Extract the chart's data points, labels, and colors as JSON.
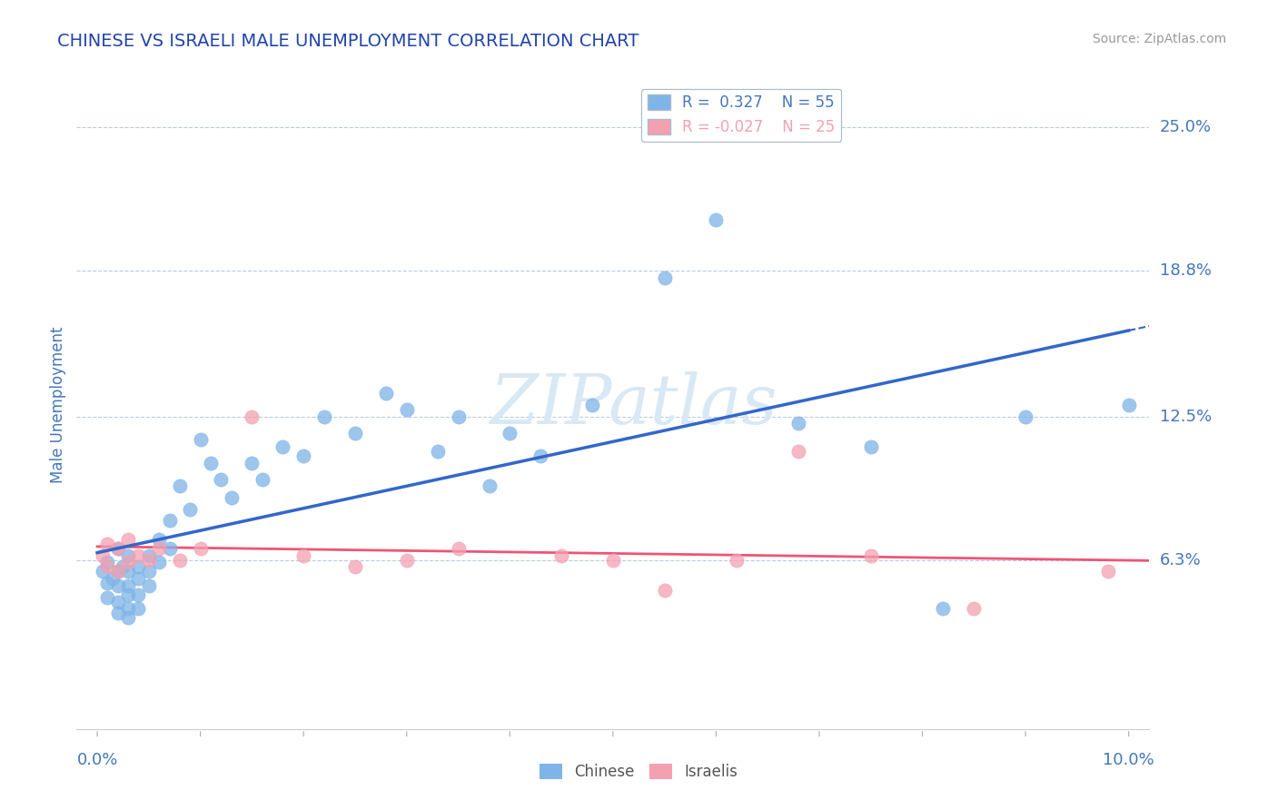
{
  "title": "CHINESE VS ISRAELI MALE UNEMPLOYMENT CORRELATION CHART",
  "source": "Source: ZipAtlas.com",
  "ylabel": "Male Unemployment",
  "ytick_labels": [
    "6.3%",
    "12.5%",
    "18.8%",
    "25.0%"
  ],
  "ytick_values": [
    0.063,
    0.125,
    0.188,
    0.25
  ],
  "xlim": [
    -0.002,
    0.102
  ],
  "ylim": [
    -0.01,
    0.27
  ],
  "chinese_R": 0.327,
  "chinese_N": 55,
  "israeli_R": -0.027,
  "israeli_N": 25,
  "chinese_color": "#7EB4E8",
  "israeli_color": "#F4A0B0",
  "trend_chinese_color": "#3366CC",
  "trend_israeli_color": "#EE5577",
  "title_color": "#2244AA",
  "label_color": "#4477BB",
  "axis_color": "#BBCCDD",
  "watermark_color": "#D8E8F4",
  "chinese_x": [
    0.0005,
    0.001,
    0.001,
    0.001,
    0.0015,
    0.002,
    0.002,
    0.002,
    0.002,
    0.002,
    0.0025,
    0.003,
    0.003,
    0.003,
    0.003,
    0.003,
    0.003,
    0.004,
    0.004,
    0.004,
    0.004,
    0.005,
    0.005,
    0.005,
    0.006,
    0.006,
    0.007,
    0.007,
    0.008,
    0.009,
    0.01,
    0.011,
    0.012,
    0.013,
    0.015,
    0.016,
    0.018,
    0.02,
    0.022,
    0.025,
    0.028,
    0.03,
    0.033,
    0.035,
    0.038,
    0.04,
    0.043,
    0.048,
    0.055,
    0.06,
    0.068,
    0.075,
    0.082,
    0.09,
    0.1
  ],
  "chinese_y": [
    0.058,
    0.062,
    0.053,
    0.047,
    0.055,
    0.068,
    0.058,
    0.052,
    0.045,
    0.04,
    0.06,
    0.065,
    0.058,
    0.052,
    0.048,
    0.042,
    0.038,
    0.06,
    0.055,
    0.048,
    0.042,
    0.065,
    0.058,
    0.052,
    0.072,
    0.062,
    0.08,
    0.068,
    0.095,
    0.085,
    0.115,
    0.105,
    0.098,
    0.09,
    0.105,
    0.098,
    0.112,
    0.108,
    0.125,
    0.118,
    0.135,
    0.128,
    0.11,
    0.125,
    0.095,
    0.118,
    0.108,
    0.13,
    0.185,
    0.21,
    0.122,
    0.112,
    0.042,
    0.125,
    0.13
  ],
  "israeli_x": [
    0.0005,
    0.001,
    0.001,
    0.002,
    0.002,
    0.003,
    0.003,
    0.004,
    0.005,
    0.006,
    0.008,
    0.01,
    0.015,
    0.02,
    0.025,
    0.03,
    0.035,
    0.045,
    0.05,
    0.055,
    0.062,
    0.068,
    0.075,
    0.085,
    0.098
  ],
  "israeli_y": [
    0.065,
    0.07,
    0.06,
    0.068,
    0.058,
    0.072,
    0.062,
    0.065,
    0.063,
    0.068,
    0.063,
    0.068,
    0.125,
    0.065,
    0.06,
    0.063,
    0.068,
    0.065,
    0.063,
    0.05,
    0.063,
    0.11,
    0.065,
    0.042,
    0.058
  ]
}
